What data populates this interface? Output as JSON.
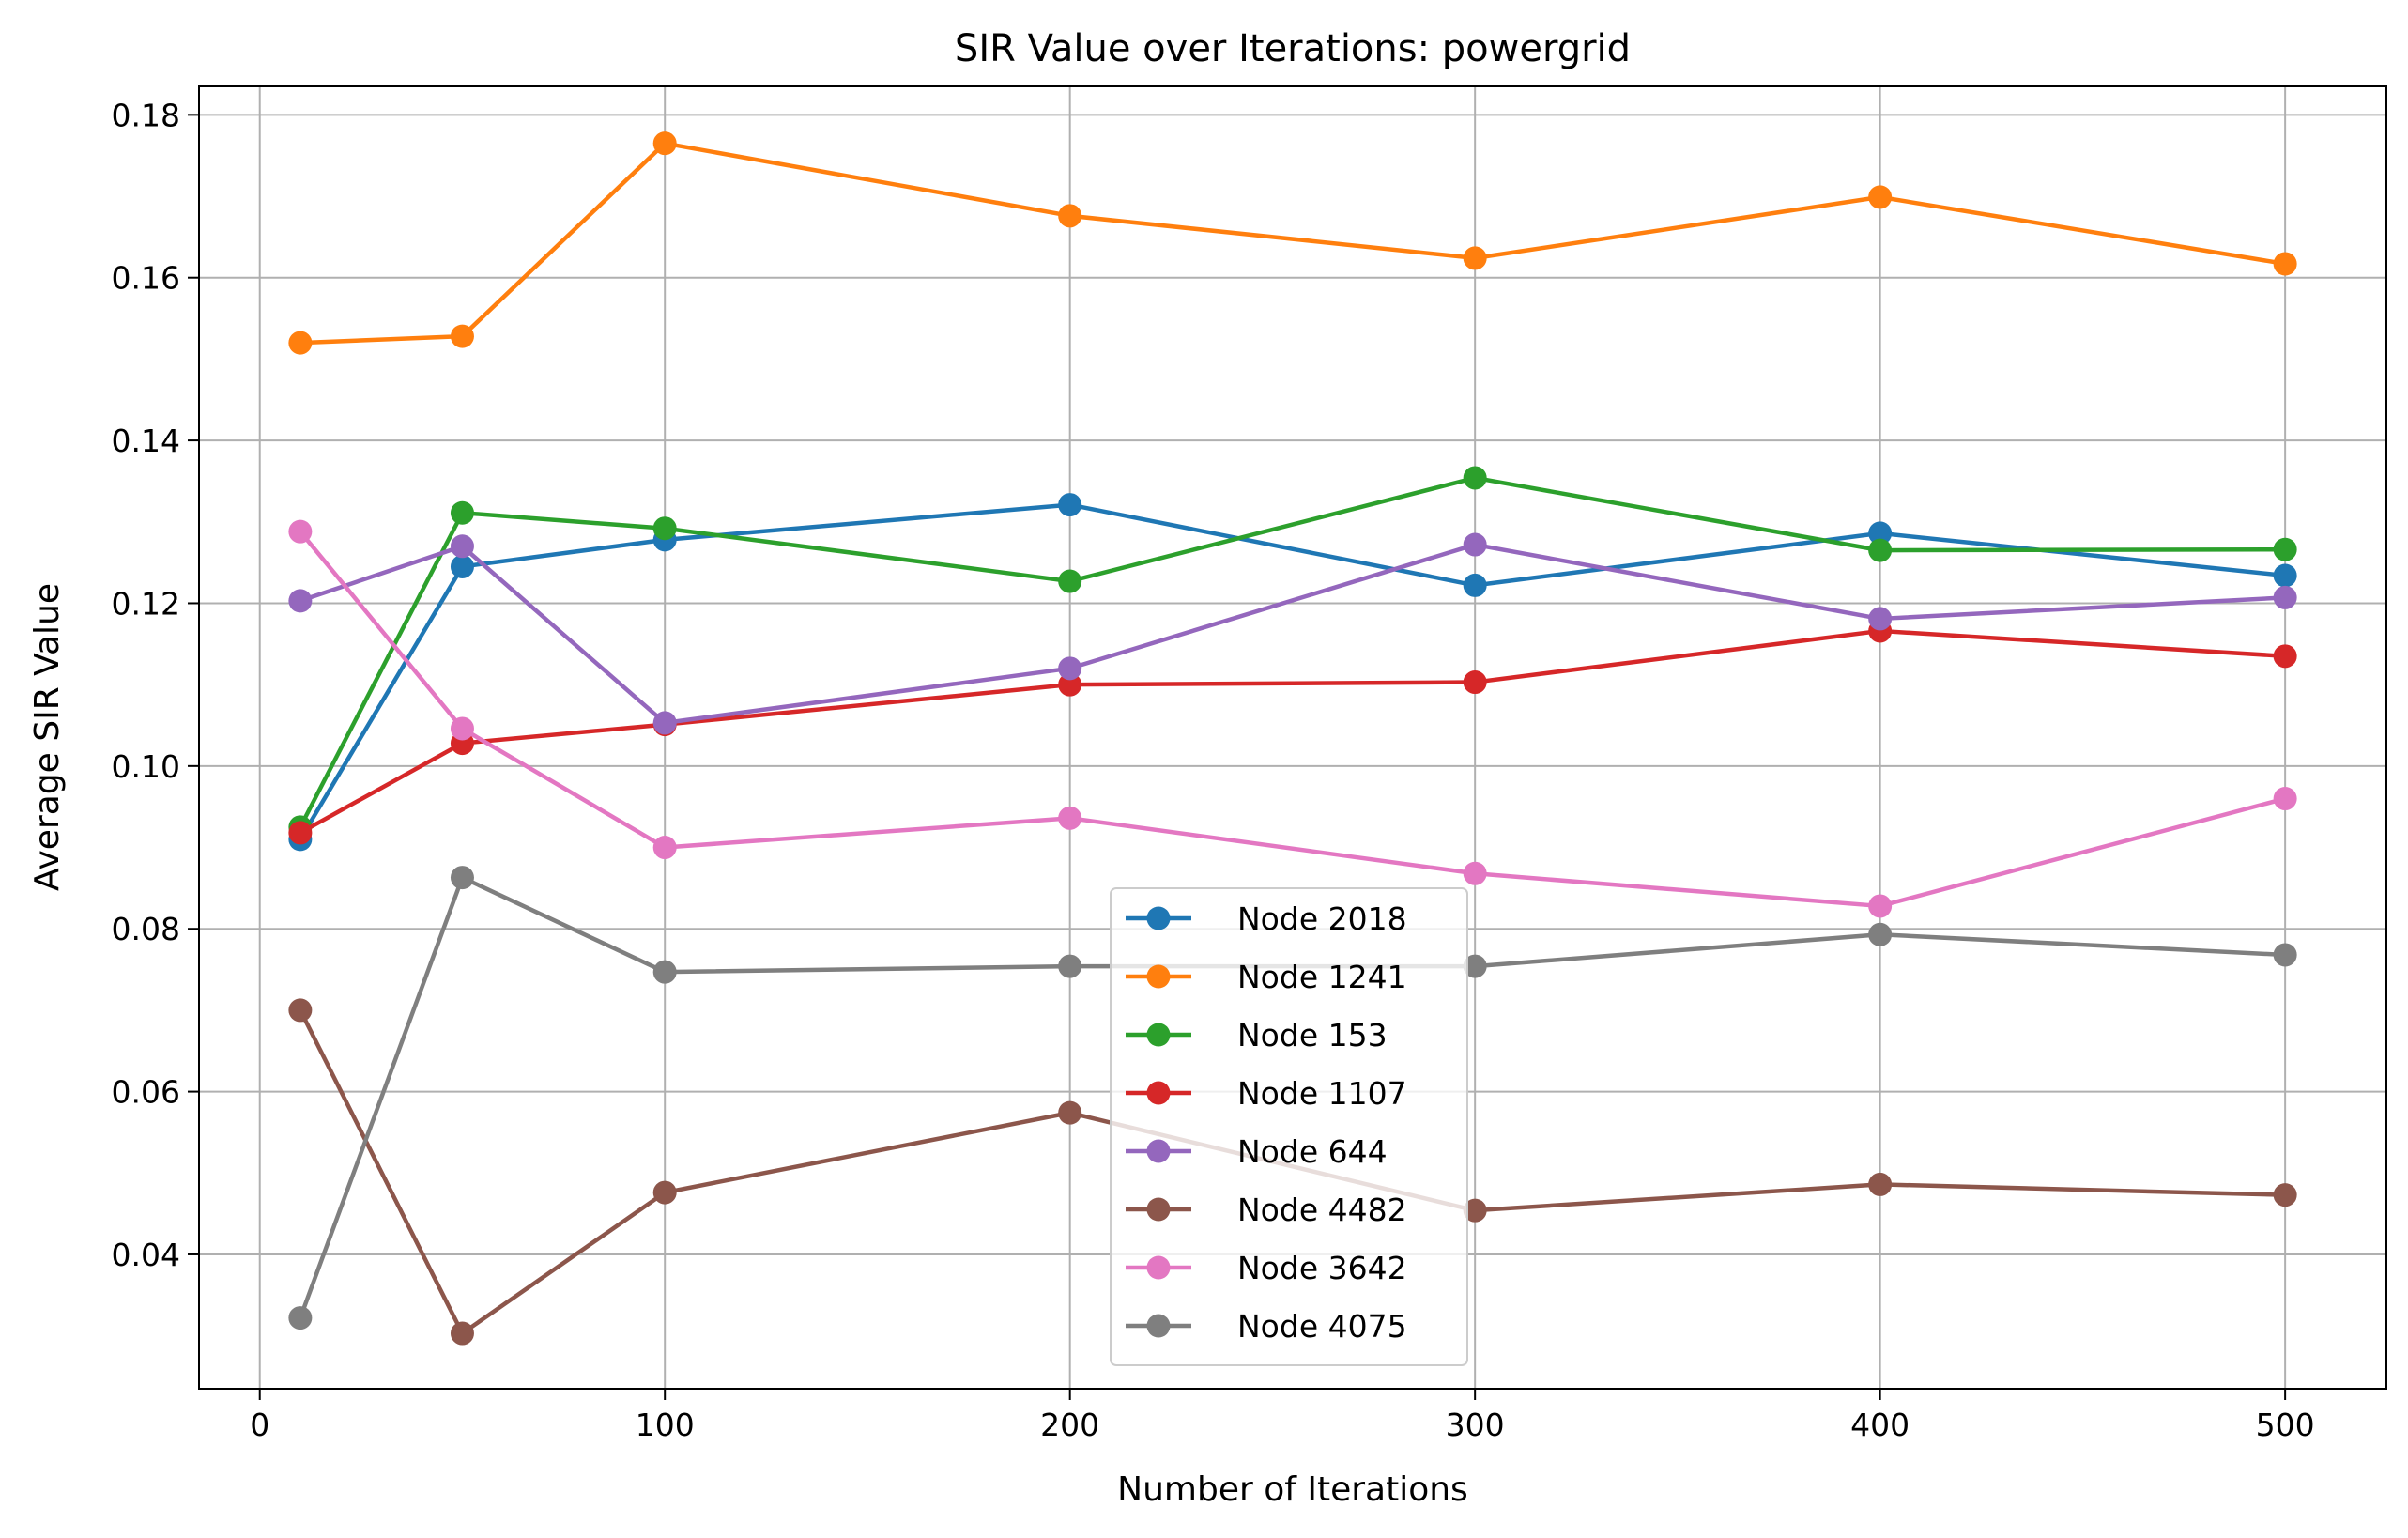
{
  "chart_data": {
    "type": "line",
    "title": "SIR Value over Iterations: powergrid",
    "xlabel": "Number of Iterations",
    "ylabel": "Average SIR Value",
    "xlim": [
      -15,
      525
    ],
    "ylim": [
      0.0235,
      0.1835
    ],
    "xticks": [
      0,
      100,
      200,
      300,
      400,
      500
    ],
    "yticks": [
      0.04,
      0.06,
      0.08,
      0.1,
      0.12,
      0.14,
      0.16,
      0.18
    ],
    "ytick_labels": [
      "0.04",
      "0.06",
      "0.08",
      "0.10",
      "0.12",
      "0.14",
      "0.16",
      "0.18"
    ],
    "grid": true,
    "legend_position": "lower-center",
    "x": [
      10,
      50,
      100,
      200,
      300,
      400,
      500
    ],
    "series": [
      {
        "name": "Node 2018",
        "color": "#1f77b4",
        "values": [
          0.091,
          0.1245,
          0.1278,
          0.1321,
          0.1222,
          0.1286,
          0.1234
        ]
      },
      {
        "name": "Node 1241",
        "color": "#ff7f0e",
        "values": [
          0.152,
          0.1528,
          0.1765,
          0.1676,
          0.1624,
          0.1699,
          0.1617
        ]
      },
      {
        "name": "Node 153",
        "color": "#2ca02c",
        "values": [
          0.0925,
          0.1311,
          0.1292,
          0.1227,
          0.1354,
          0.1265,
          0.1266
        ]
      },
      {
        "name": "Node 1107",
        "color": "#d62728",
        "values": [
          0.0918,
          0.1028,
          0.1051,
          0.11,
          0.1103,
          0.1166,
          0.1135
        ]
      },
      {
        "name": "Node 644",
        "color": "#9467bd",
        "values": [
          0.1203,
          0.127,
          0.1053,
          0.112,
          0.1272,
          0.1181,
          0.1207
        ]
      },
      {
        "name": "Node 4482",
        "color": "#8c564b",
        "values": [
          0.07,
          0.0303,
          0.0476,
          0.0574,
          0.0454,
          0.0486,
          0.0473
        ]
      },
      {
        "name": "Node 3642",
        "color": "#e377c2",
        "values": [
          0.1288,
          0.1046,
          0.09,
          0.0936,
          0.0868,
          0.0828,
          0.096
        ]
      },
      {
        "name": "Node 4075",
        "color": "#7f7f7f",
        "values": [
          0.0322,
          0.0863,
          0.0747,
          0.0754,
          0.0754,
          0.0793,
          0.0768
        ]
      }
    ]
  }
}
